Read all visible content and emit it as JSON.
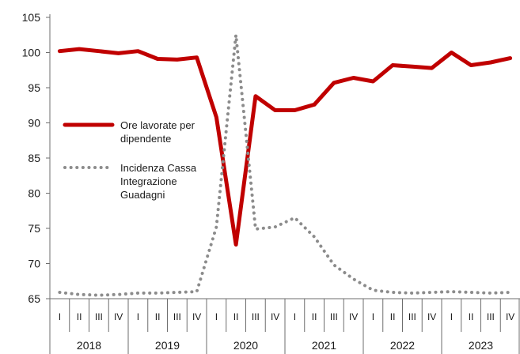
{
  "chart_data": {
    "type": "line",
    "title": "",
    "xlabel": "",
    "ylabel": "",
    "ylim": [
      65,
      105
    ],
    "yticks": [
      65,
      70,
      75,
      80,
      85,
      90,
      95,
      100,
      105
    ],
    "years": [
      "2018",
      "2019",
      "2020",
      "2021",
      "2022",
      "2023"
    ],
    "quarters": [
      "I",
      "II",
      "III",
      "IV"
    ],
    "x": [
      "2018-I",
      "2018-II",
      "2018-III",
      "2018-IV",
      "2019-I",
      "2019-II",
      "2019-III",
      "2019-IV",
      "2020-I",
      "2020-II",
      "2020-III",
      "2020-IV",
      "2021-I",
      "2021-II",
      "2021-III",
      "2021-IV",
      "2022-I",
      "2022-II",
      "2022-III",
      "2022-IV",
      "2023-I",
      "2023-II",
      "2023-III",
      "2023-IV"
    ],
    "series": [
      {
        "name": "Ore lavorate per dipendente",
        "style": "solid",
        "color": "#c00000",
        "values": [
          100.2,
          100.5,
          100.2,
          99.9,
          100.2,
          99.1,
          99.0,
          99.3,
          90.8,
          72.7,
          93.8,
          91.8,
          91.8,
          92.6,
          95.7,
          96.4,
          95.9,
          98.2,
          98.0,
          97.8,
          100.0,
          98.2,
          98.6,
          99.2
        ]
      },
      {
        "name": "Incidenza Cassa Integrazione Guadagni",
        "style": "dotted",
        "color": "#8c8c8c",
        "values": [
          65.9,
          65.6,
          65.5,
          65.6,
          65.8,
          65.8,
          65.9,
          66.0,
          75.2,
          102.5,
          74.9,
          75.2,
          76.5,
          73.8,
          69.8,
          67.8,
          66.2,
          65.9,
          65.8,
          65.9,
          66.0,
          65.9,
          65.8,
          65.9
        ]
      }
    ],
    "legend": {
      "placement": "left",
      "lines": [
        [
          "Ore lavorate per",
          "dipendente"
        ],
        [
          "Incidenza Cassa",
          "Integrazione",
          "Guadagni"
        ]
      ]
    },
    "grid": false
  }
}
